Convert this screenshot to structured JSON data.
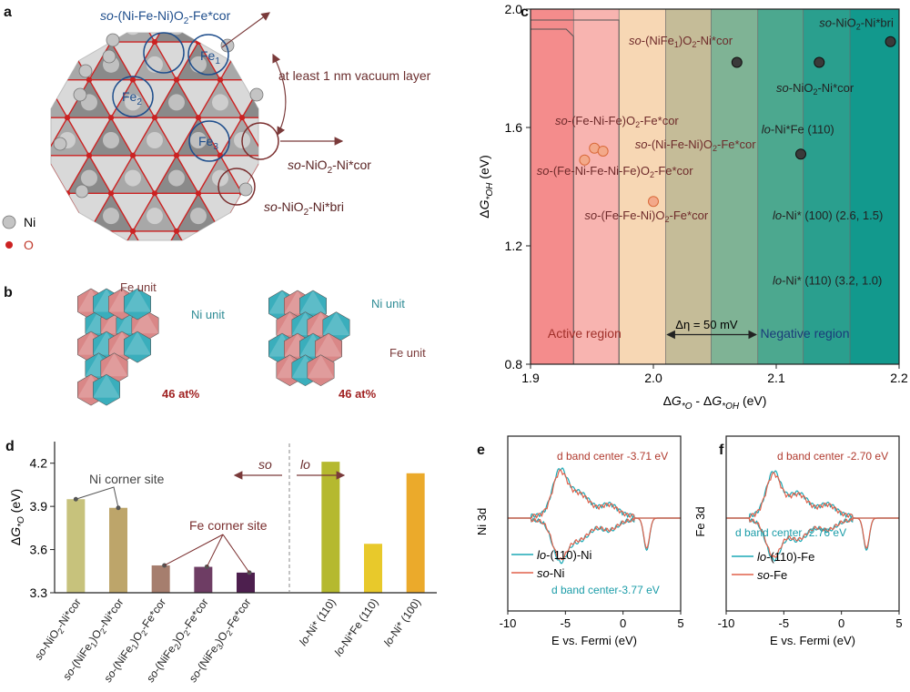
{
  "panel_a": {
    "label": "a",
    "annotations": {
      "top": "(Ni-Fe-Ni)O",
      "top_prefix": "so-",
      "top_sub": "2",
      "top_suffix": "-Fe*cor",
      "fe1": "Fe",
      "fe1_sub": "1",
      "fe2": "Fe",
      "fe2_sub": "2",
      "fe3": "Fe",
      "fe3_sub": "3",
      "vacuum": "at least 1 nm vacuum layer",
      "nicor_prefix": "so-",
      "nicor": "NiO",
      "nicor_sub": "2",
      "nicor_suffix": "-Ni*cor",
      "nibri_prefix": "so-",
      "nibri": "NiO",
      "nibri_sub": "2",
      "nibri_suffix": "-Ni*bri"
    },
    "legend": {
      "ni": "Ni",
      "o": "O"
    },
    "colors": {
      "ni": "#bdbdbd",
      "o": "#cc2222",
      "octa": "#8c8c8c",
      "circle_blue": "#1f4e8c",
      "circle_brown": "#7a2e2e"
    }
  },
  "panel_b": {
    "label": "b",
    "left": {
      "fe_unit": "Fe unit",
      "ni_unit": "Ni unit",
      "percent": "46 at%"
    },
    "right": {
      "fe_unit": "Fe unit",
      "ni_unit": "Ni unit",
      "percent": "46 at%"
    },
    "colors": {
      "fe": "#d98787",
      "ni": "#3aaebc"
    }
  },
  "panel_c": {
    "label": "c",
    "eta_label": "Δη = 50 mV",
    "active_region": "Active region",
    "negative_region": "Negative region"
  },
  "panel_d": {
    "label": "d",
    "divider_left": "so",
    "divider_right": "lo",
    "ni_corner": "Ni corner site",
    "fe_corner": "Fe corner site"
  },
  "panel_e": {
    "label": "e",
    "ylabel": "Ni 3d",
    "xlabel": "E vs. Fermi (eV)",
    "center_top": "d band center -3.71 eV",
    "center_bottom": "d band center-3.77 eV",
    "legend_lo": "-(110)-Ni",
    "legend_lo_prefix": "lo",
    "legend_so": "-Ni",
    "legend_so_prefix": "so",
    "xticks": [
      "-10",
      "-5",
      "0",
      "5"
    ]
  },
  "panel_f": {
    "label": "f",
    "ylabel": "Fe 3d",
    "xlabel": "E vs. Fermi (eV)",
    "center_top": "d band center -2.70 eV",
    "center_bottom": "d band center -2.76 eV",
    "legend_lo": "-(110)-Fe",
    "legend_lo_prefix": "lo",
    "legend_so": "-Fe",
    "legend_so_prefix": "so",
    "xticks": [
      "-10",
      "-5",
      "0",
      "5"
    ]
  },
  "chart_data": [
    {
      "id": "c",
      "type": "scatter",
      "xlabel": "ΔG*O - ΔG*OH (eV)",
      "ylabel": "ΔG*OH (eV)",
      "xlim": [
        1.9,
        2.2
      ],
      "ylim": [
        0.8,
        2.0
      ],
      "xticks": [
        1.9,
        2.0,
        2.1,
        2.2
      ],
      "yticks": [
        0.8,
        1.2,
        1.6,
        2.0
      ],
      "x_tick_labels": [
        "1.9",
        "2.0",
        "2.1",
        "2.2"
      ],
      "y_tick_labels": [
        "0.8",
        "1.2",
        "1.6",
        "2.0"
      ],
      "regions": [
        {
          "from": 1.9,
          "to": 1.935,
          "color": "#f48c8c"
        },
        {
          "from": 1.935,
          "to": 1.972,
          "color": "#f8b4b0"
        },
        {
          "from": 1.972,
          "to": 2.01,
          "color": "#f7d7b4"
        },
        {
          "from": 2.01,
          "to": 2.047,
          "color": "#c5bc98"
        },
        {
          "from": 2.047,
          "to": 2.085,
          "color": "#7fb395"
        },
        {
          "from": 2.085,
          "to": 2.122,
          "color": "#4ca88f"
        },
        {
          "from": 2.122,
          "to": 2.16,
          "color": "#2a9f8e"
        },
        {
          "from": 2.16,
          "to": 2.2,
          "color": "#12998d"
        }
      ],
      "eta_arrow": {
        "from": 2.01,
        "to": 2.085,
        "y": 0.9
      },
      "points": [
        {
          "label": "so-(NiFe1)O2-Ni*cor",
          "x": 2.068,
          "y": 1.82,
          "group": "ni"
        },
        {
          "label": "so-NiO2-Ni*bri",
          "x": 2.193,
          "y": 1.89,
          "group": "ni"
        },
        {
          "label": "so-NiO2-Ni*cor",
          "x": 2.135,
          "y": 1.82,
          "group": "ni"
        },
        {
          "label": "lo-Ni*Fe (110)",
          "x": 2.12,
          "y": 1.51,
          "group": "ni"
        },
        {
          "label": "so-(Fe-Ni-Fe)O2-Fe*cor",
          "x": 1.952,
          "y": 1.53,
          "group": "fe"
        },
        {
          "label": "so-(Ni-Fe-Ni)O2-Fe*cor",
          "x": 1.959,
          "y": 1.52,
          "group": "fe"
        },
        {
          "label": "so-(Fe-Ni-Fe-Ni-Fe)O2-Fe*cor",
          "x": 1.944,
          "y": 1.49,
          "group": "fe"
        },
        {
          "label": "so-(Fe-Fe-Ni)O2-Fe*cor",
          "x": 2.0,
          "y": 1.35,
          "group": "fe"
        }
      ],
      "point_labels": [
        {
          "prefix": "so",
          "text": "-(NiFe",
          "sub": "1",
          "text2": ")O",
          "sub2": "2",
          "text3": "-Ni*cor",
          "x": 1.98,
          "y": 1.88
        },
        {
          "prefix": "so",
          "text": "-NiO",
          "sub": "2",
          "text2": "-Ni*bri",
          "sub2": "",
          "text3": "",
          "x": 2.135,
          "y": 1.94
        },
        {
          "prefix": "so",
          "text": "-NiO",
          "sub": "2",
          "text2": "-Ni*cor",
          "sub2": "",
          "text3": "",
          "x": 2.1,
          "y": 1.72
        },
        {
          "prefix": "lo",
          "text": "-Ni*Fe (110)",
          "sub": "",
          "text2": "",
          "sub2": "",
          "text3": "",
          "x": 2.088,
          "y": 1.58
        },
        {
          "prefix": "so",
          "text": "-(Fe-Ni-Fe)O",
          "sub": "2",
          "text2": "-Fe*cor",
          "sub2": "",
          "text3": "",
          "x": 1.92,
          "y": 1.61
        },
        {
          "prefix": "so",
          "text": "-(Ni-Fe-Ni)O",
          "sub": "2",
          "text2": "-Fe*cor",
          "sub2": "",
          "text3": "",
          "x": 1.985,
          "y": 1.53
        },
        {
          "prefix": "so",
          "text": "-(Fe-Ni-Fe-Ni-Fe)O",
          "sub": "2",
          "text2": "-Fe*cor",
          "sub2": "",
          "text3": "",
          "x": 1.905,
          "y": 1.44
        },
        {
          "prefix": "so",
          "text": "-(Fe-Fe-Ni)O",
          "sub": "2",
          "text2": "-Fe*cor",
          "sub2": "",
          "text3": "",
          "x": 1.944,
          "y": 1.29
        },
        {
          "prefix": "lo",
          "text": "-Ni* (100) (2.6, 1.5)",
          "sub": "",
          "text2": "",
          "sub2": "",
          "text3": "",
          "x": 2.097,
          "y": 1.29
        },
        {
          "prefix": "lo",
          "text": "-Ni* (110) (3.2, 1.0)",
          "sub": "",
          "text2": "",
          "sub2": "",
          "text3": "",
          "x": 2.097,
          "y": 1.07
        }
      ]
    },
    {
      "id": "d",
      "type": "bar",
      "ylabel": "ΔG*O (eV)",
      "ylim": [
        3.3,
        4.35
      ],
      "yticks": [
        3.3,
        3.6,
        3.9,
        4.2
      ],
      "y_tick_labels": [
        "3.3",
        "3.6",
        "3.9",
        "4.2"
      ],
      "bars": [
        {
          "category": "so-NiO2-Ni*cor",
          "prefix": "so",
          "text": "-NiO",
          "sub": "2",
          "text2": "-Ni*cor",
          "sub2": "",
          "text3": "",
          "value": 3.95,
          "color": "#c7c27c",
          "slot": 0
        },
        {
          "category": "so-(NiFe1)O2-Ni*cor",
          "prefix": "so",
          "text": "-(NiFe",
          "sub": "1",
          "text2": ")O",
          "sub2": "2",
          "text3": "-Ni*cor",
          "value": 3.89,
          "color": "#bda56a",
          "slot": 1
        },
        {
          "category": "so-(NiFe1)O2-Fe*cor",
          "prefix": "so",
          "text": "-(NiFe",
          "sub": "1",
          "text2": ")O",
          "sub2": "2",
          "text3": "-Fe*cor",
          "value": 3.49,
          "color": "#a67e6e",
          "slot": 2
        },
        {
          "category": "so-(NiFe2)O2-Fe*cor",
          "prefix": "so",
          "text": "-(NiFe",
          "sub": "2",
          "text2": ")O",
          "sub2": "2",
          "text3": "-Fe*cor",
          "value": 3.48,
          "color": "#6e3d64",
          "slot": 3
        },
        {
          "category": "so-(NiFe3)O2-Fe*cor",
          "prefix": "so",
          "text": "-(NiFe",
          "sub": "3",
          "text2": ")O",
          "sub2": "2",
          "text3": "-Fe*cor",
          "value": 3.44,
          "color": "#4d1f4e",
          "slot": 4
        },
        {
          "category": "lo-Ni* (110)",
          "prefix": "lo",
          "text": "-Ni* (110)",
          "sub": "",
          "text2": "",
          "sub2": "",
          "text3": "",
          "value": 4.21,
          "color": "#b5b92f",
          "slot": 6
        },
        {
          "category": "lo-Ni*Fe (110)",
          "prefix": "lo",
          "text": "-Ni*Fe (110)",
          "sub": "",
          "text2": "",
          "sub2": "",
          "text3": "",
          "value": 3.64,
          "color": "#e8c92b",
          "slot": 7
        },
        {
          "category": "lo-Ni* (100)",
          "prefix": "lo",
          "text": "-Ni* (100)",
          "sub": "",
          "text2": "",
          "sub2": "",
          "text3": "",
          "value": 4.13,
          "color": "#ebaa2b",
          "slot": 8
        }
      ]
    },
    {
      "id": "e",
      "type": "line",
      "xlim": [
        -10,
        5
      ],
      "series": [
        {
          "name": "lo-(110)-Ni",
          "color": "#1ba9b5"
        },
        {
          "name": "so-Ni",
          "color": "#e0604a"
        }
      ]
    },
    {
      "id": "f",
      "type": "line",
      "xlim": [
        -10,
        5
      ],
      "series": [
        {
          "name": "lo-(110)-Fe",
          "color": "#1ba9b5"
        },
        {
          "name": "so-Fe",
          "color": "#e0604a"
        }
      ]
    }
  ]
}
